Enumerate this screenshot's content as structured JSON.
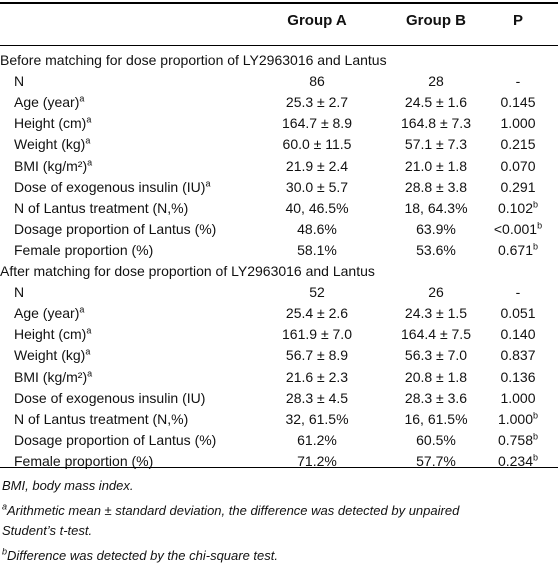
{
  "header": {
    "col_a": "Group A",
    "col_b": "Group B",
    "col_p": "P"
  },
  "section1": {
    "title": "Before matching for dose proportion of LY2963016 and Lantus",
    "rows": [
      {
        "label": "N",
        "sup": "",
        "a": "86",
        "b": "28",
        "p": "-",
        "psup": ""
      },
      {
        "label": "Age (year)",
        "sup": "a",
        "a": "25.3 ± 2.7",
        "b": "24.5 ± 1.6",
        "p": "0.145",
        "psup": ""
      },
      {
        "label": "Height (cm)",
        "sup": "a",
        "a": "164.7 ± 8.9",
        "b": "164.8 ± 7.3",
        "p": "1.000",
        "psup": ""
      },
      {
        "label": "Weight (kg)",
        "sup": "a",
        "a": "60.0 ± 11.5",
        "b": "57.1 ± 7.3",
        "p": "0.215",
        "psup": ""
      },
      {
        "label": "BMI (kg/m²)",
        "sup": "a",
        "a": "21.9 ± 2.4",
        "b": "21.0 ± 1.8",
        "p": "0.070",
        "psup": ""
      },
      {
        "label": "Dose of exogenous insulin (IU)",
        "sup": "a",
        "a": "30.0 ± 5.7",
        "b": "28.8 ± 3.8",
        "p": "0.291",
        "psup": ""
      },
      {
        "label": "N of Lantus treatment (N,%)",
        "sup": "",
        "a": "40, 46.5%",
        "b": "18, 64.3%",
        "p": "0.102",
        "psup": "b"
      },
      {
        "label": "Dosage proportion of Lantus (%)",
        "sup": "",
        "a": "48.6%",
        "b": "63.9%",
        "p": "<0.001",
        "psup": "b"
      },
      {
        "label": "Female proportion (%)",
        "sup": "",
        "a": "58.1%",
        "b": "53.6%",
        "p": "0.671",
        "psup": "b"
      }
    ]
  },
  "section2": {
    "title": "After matching for dose proportion of LY2963016 and Lantus",
    "rows": [
      {
        "label": "N",
        "sup": "",
        "a": "52",
        "b": "26",
        "p": "-",
        "psup": ""
      },
      {
        "label": "Age (year)",
        "sup": "a",
        "a": "25.4 ± 2.6",
        "b": "24.3 ± 1.5",
        "p": "0.051",
        "psup": ""
      },
      {
        "label": "Height (cm)",
        "sup": "a",
        "a": "161.9 ± 7.0",
        "b": "164.4 ± 7.5",
        "p": "0.140",
        "psup": ""
      },
      {
        "label": "Weight (kg)",
        "sup": "a",
        "a": "56.7 ± 8.9",
        "b": "56.3 ± 7.0",
        "p": "0.837",
        "psup": ""
      },
      {
        "label": "BMI (kg/m²)",
        "sup": "a",
        "a": "21.6 ± 2.3",
        "b": "20.8 ± 1.8",
        "p": "0.136",
        "psup": ""
      },
      {
        "label": "Dose of exogenous insulin (IU)",
        "sup": "",
        "a": "28.3 ± 4.5",
        "b": "28.3 ± 3.6",
        "p": "1.000",
        "psup": ""
      },
      {
        "label": "N of Lantus treatment (N,%)",
        "sup": "",
        "a": "32, 61.5%",
        "b": "16, 61.5%",
        "p": "1.000",
        "psup": "b"
      },
      {
        "label": "Dosage proportion of Lantus (%)",
        "sup": "",
        "a": "61.2%",
        "b": "60.5%",
        "p": "0.758",
        "psup": "b"
      },
      {
        "label": "Female proportion (%)",
        "sup": "",
        "a": "71.2%",
        "b": "57.7%",
        "p": "0.234",
        "psup": "b"
      }
    ]
  },
  "footnotes": {
    "abbrev": "BMI, body mass index.",
    "a_mark": "a",
    "a_line1": "Arithmetic mean ± standard deviation, the difference was detected by unpaired",
    "a_line2": "Student’s t-test.",
    "b_mark": "b",
    "b_text": "Difference was detected by the chi-square test."
  }
}
